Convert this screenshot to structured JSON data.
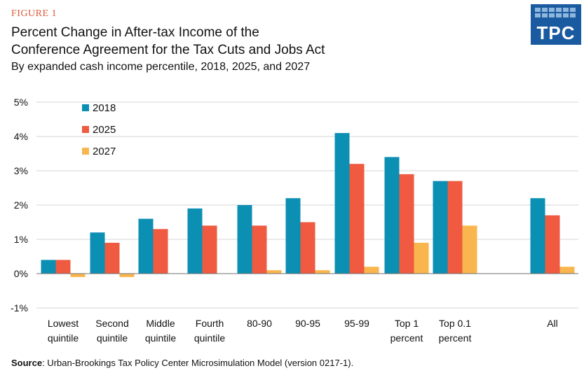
{
  "figure_label": "FIGURE 1",
  "title_line1": "Percent Change in After-tax Income of the",
  "title_line2": "Conference Agreement for the Tax Cuts and Jobs Act",
  "subtitle": "By expanded cash income percentile, 2018, 2025, and 2027",
  "logo_text": "TPC",
  "source_label": "Source",
  "source_text": ": Urban-Brookings Tax Policy Center Microsimulation Model (version 0217-1).",
  "colors": {
    "s2018": "#0b8fb3",
    "s2025": "#ef5a40",
    "s2027": "#f9b64e",
    "logo": "#1a5aa0"
  },
  "chart_data": {
    "type": "bar",
    "categories": [
      [
        "Lowest",
        "quintile"
      ],
      [
        "Second",
        "quintile"
      ],
      [
        "Middle",
        "quintile"
      ],
      [
        "Fourth",
        "quintile"
      ],
      [
        "80-90"
      ],
      [
        "90-95"
      ],
      [
        "95-99"
      ],
      [
        "Top 1",
        "percent"
      ],
      [
        "Top 0.1",
        "percent"
      ],
      [
        "All"
      ]
    ],
    "series": [
      {
        "name": "2018",
        "values": [
          0.4,
          1.2,
          1.6,
          1.9,
          2.0,
          2.2,
          4.1,
          3.4,
          2.7,
          2.2
        ]
      },
      {
        "name": "2025",
        "values": [
          0.4,
          0.9,
          1.3,
          1.4,
          1.4,
          1.5,
          3.2,
          2.9,
          2.7,
          1.7
        ]
      },
      {
        "name": "2027",
        "values": [
          -0.1,
          -0.1,
          0.0,
          0.0,
          0.1,
          0.1,
          0.2,
          0.9,
          1.4,
          0.2
        ]
      }
    ],
    "ylim": [
      -1,
      5
    ],
    "yticks": [
      "-1%",
      "0%",
      "1%",
      "2%",
      "3%",
      "4%",
      "5%"
    ],
    "grid": true,
    "legend": "top-left"
  }
}
